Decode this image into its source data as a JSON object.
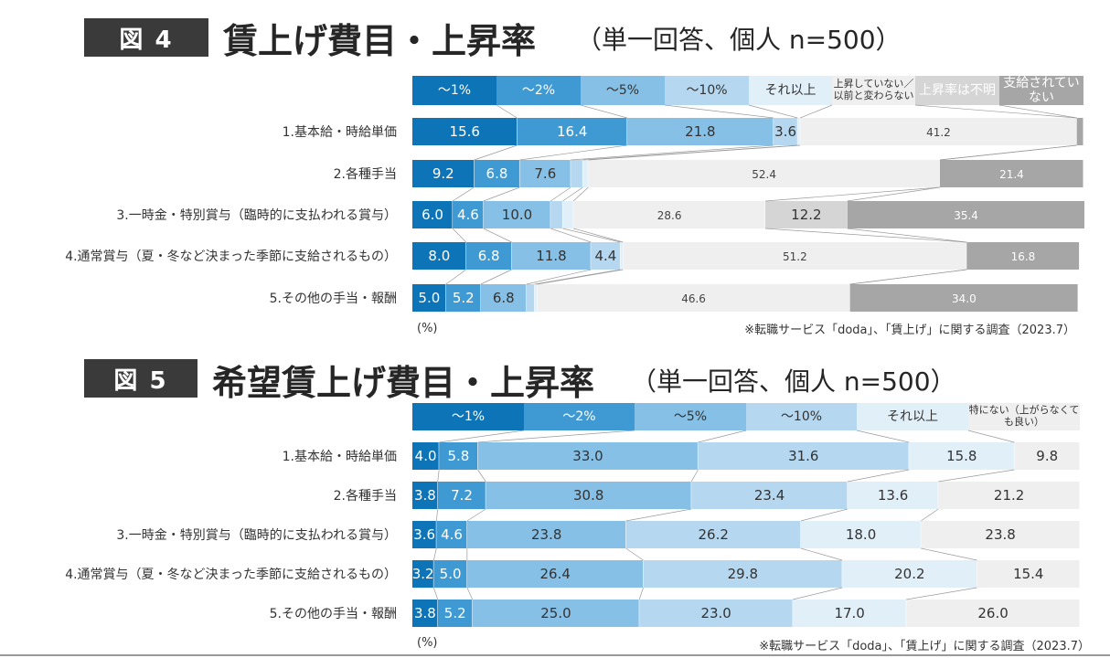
{
  "palette": [
    "#0d74b8",
    "#3f9ad4",
    "#86c0e6",
    "#b5d7ef",
    "#e1eff9",
    "#efefef",
    "#d5d5d5",
    "#a6a6a6"
  ],
  "chart_data": [
    {
      "type": "bar",
      "orientation": "horizontal-stacked-100",
      "badge": "図 4",
      "title": "賃上げ費目・上昇率",
      "subtitle": "（単一回答、個人 n=500）",
      "unit_label": "(%)",
      "source": "※転職サービス「doda」、「賃上げ」に関する調査（2023.7）",
      "legend": [
        "～1%",
        "～2%",
        "～5%",
        "～10%",
        "それ以上",
        "上昇していない／以前と変わらない",
        "上昇率は不明",
        "支給されていない"
      ],
      "categories": [
        "1.基本給・時給単価",
        "2.各種手当",
        "3.一時金・特別賞与（臨時的に支払われる賞与）",
        "4.通常賞与（夏・冬など決まった季節に支給されるもの）",
        "5.その他の手当・報酬"
      ],
      "series": [
        {
          "name": "～1%",
          "values": [
            15.6,
            9.2,
            6.0,
            8.0,
            5.0
          ]
        },
        {
          "name": "～2%",
          "values": [
            16.4,
            6.8,
            4.6,
            6.8,
            5.2
          ]
        },
        {
          "name": "～5%",
          "values": [
            21.8,
            7.6,
            10.0,
            11.8,
            6.8
          ]
        },
        {
          "name": "～10%",
          "values": [
            3.6,
            1.8,
            1.8,
            4.4,
            1.2
          ]
        },
        {
          "name": "それ以上",
          "values": [
            0.4,
            0.8,
            1.6,
            0.4,
            0.4
          ]
        },
        {
          "name": "上昇していない／以前と変わらない",
          "values": [
            41.2,
            52.4,
            28.6,
            51.2,
            46.6
          ]
        },
        {
          "name": "上昇率は不明",
          "values": [
            0.0,
            0.0,
            12.2,
            0.0,
            0.0
          ]
        },
        {
          "name": "支給されていない",
          "values": [
            1.0,
            21.4,
            35.4,
            16.8,
            34.0
          ]
        }
      ],
      "shown_labels": [
        [
          "15.6",
          "16.4",
          "21.8",
          "3.6",
          "",
          "41.2",
          "",
          ""
        ],
        [
          "9.2",
          "6.8",
          "7.6",
          "",
          "",
          "52.4",
          "",
          "21.4"
        ],
        [
          "6.0",
          "4.6",
          "10.0",
          "",
          "",
          "28.6",
          "12.2",
          "35.4"
        ],
        [
          "8.0",
          "6.8",
          "11.8",
          "4.4",
          "",
          "51.2",
          "",
          "16.8"
        ],
        [
          "5.0",
          "5.2",
          "6.8",
          "",
          "",
          "46.6",
          "",
          "34.0"
        ]
      ],
      "xlim": [
        0,
        100
      ]
    },
    {
      "type": "bar",
      "orientation": "horizontal-stacked-100",
      "badge": "図 5",
      "title": "希望賃上げ費目・上昇率",
      "subtitle": "（単一回答、個人 n=500）",
      "unit_label": "(%)",
      "source": "※転職サービス「doda」、「賃上げ」に関する調査（2023.7）",
      "legend": [
        "～1%",
        "～2%",
        "～5%",
        "～10%",
        "それ以上",
        "特にない（上がらなくても良い）"
      ],
      "categories": [
        "1.基本給・時給単価",
        "2.各種手当",
        "3.一時金・特別賞与（臨時的に支払われる賞与）",
        "4.通常賞与（夏・冬など決まった季節に支給されるもの）",
        "5.その他の手当・報酬"
      ],
      "series": [
        {
          "name": "～1%",
          "values": [
            4.0,
            3.8,
            3.6,
            3.2,
            3.8
          ]
        },
        {
          "name": "～2%",
          "values": [
            5.8,
            7.2,
            4.6,
            5.0,
            5.2
          ]
        },
        {
          "name": "～5%",
          "values": [
            33.0,
            30.8,
            23.8,
            26.4,
            25.0
          ]
        },
        {
          "name": "～10%",
          "values": [
            31.6,
            23.4,
            26.2,
            29.8,
            23.0
          ]
        },
        {
          "name": "それ以上",
          "values": [
            15.8,
            13.6,
            18.0,
            20.2,
            17.0
          ]
        },
        {
          "name": "特にない（上がらなくても良い）",
          "values": [
            9.8,
            21.2,
            23.8,
            15.4,
            26.0
          ]
        }
      ],
      "shown_labels": [
        [
          "4.0",
          "5.8",
          "33.0",
          "31.6",
          "15.8",
          "9.8"
        ],
        [
          "3.8",
          "7.2",
          "30.8",
          "23.4",
          "13.6",
          "21.2"
        ],
        [
          "3.6",
          "4.6",
          "23.8",
          "26.2",
          "18.0",
          "23.8"
        ],
        [
          "3.2",
          "5.0",
          "26.4",
          "29.8",
          "20.2",
          "15.4"
        ],
        [
          "3.8",
          "5.2",
          "25.0",
          "23.0",
          "17.0",
          "26.0"
        ]
      ],
      "xlim": [
        0,
        100
      ]
    }
  ]
}
